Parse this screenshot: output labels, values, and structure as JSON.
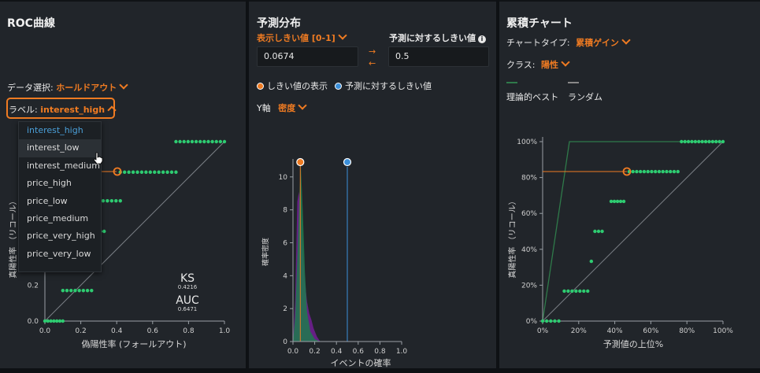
{
  "roc": {
    "title": "ROC曲線",
    "data_select_label": "データ選択:",
    "data_select_value": "ホールドアウト",
    "label_label": "ラベル:",
    "label_value": "interest_high",
    "dropdown_options": [
      "interest_high",
      "interest_low",
      "interest_medium",
      "price_high",
      "price_low",
      "price_medium",
      "price_very_high",
      "price_very_low"
    ],
    "ylabel": "真陽性率 （リコール）",
    "xlabel": "偽陽性率 (フォールアウト)",
    "x_ticks": [
      "0.0",
      "0.2",
      "0.4",
      "0.6",
      "0.8",
      "1.0"
    ],
    "y_ticks": [
      "0.0",
      "0.2"
    ],
    "ks_label": "KS",
    "ks_value": "0.4216",
    "auc_label": "AUC",
    "auc_value": "0.6471",
    "colors": {
      "points": "#2ecc71",
      "threshold": "#ef7b22"
    }
  },
  "pred": {
    "title": "予測分布",
    "display_threshold_label": "表示しきい値 [0-1]",
    "predict_threshold_label": "予測に対するしきい値",
    "info_icon": "info-icon",
    "display_threshold_value": "0.0674",
    "predict_threshold_value": "0.5",
    "legend_display": "しきい値の表示",
    "legend_predict": "予測に対するしきい値",
    "y_axis_label": "Y軸",
    "y_axis_value": "密度",
    "ylabel": "確率密度",
    "xlabel": "イベントの確率",
    "y_ticks": [
      "0",
      "2",
      "4",
      "6",
      "8",
      "10"
    ],
    "x_ticks": [
      "0.0",
      "0.2",
      "0.4",
      "0.6",
      "0.8",
      "1.0"
    ],
    "colors": {
      "display": "#ef7b22",
      "predict": "#3b8fd9",
      "positive": "#1f7a4d",
      "negative": "#6a1f8a"
    }
  },
  "cumulative": {
    "title": "累積チャート",
    "chart_type_label": "チャートタイプ:",
    "chart_type_value": "累積ゲイン",
    "class_label": "クラス:",
    "class_value": "陽性",
    "legend_best": "理論的ベスト",
    "legend_random": "ランダム",
    "ylabel": "真陽性率 （リコール）",
    "xlabel": "予測値の上位%",
    "x_ticks": [
      "0%",
      "20%",
      "40%",
      "60%",
      "80%",
      "100%"
    ],
    "y_ticks": [
      "0%",
      "20%",
      "40%",
      "60%",
      "80%",
      "100%"
    ],
    "colors": {
      "points": "#2ecc71",
      "best": "#2f7a4a",
      "random": "#888888",
      "threshold": "#ef7b22"
    }
  }
}
